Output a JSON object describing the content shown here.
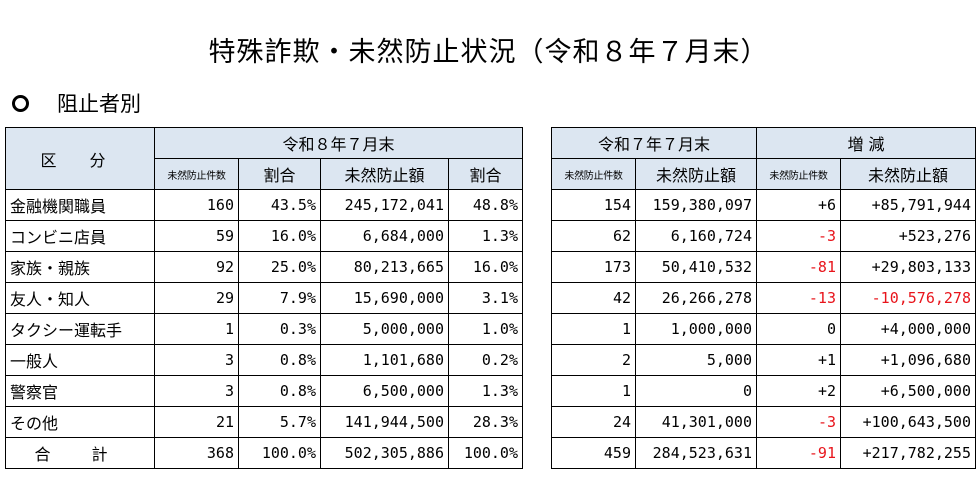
{
  "title": "特殊詐欺・未然防止状況（令和８年７月末）",
  "section_heading": "阻止者別",
  "left_table": {
    "category_header": "区 分",
    "period_header": "令和８年７月末",
    "columns": [
      "未然防止件数",
      "割合",
      "未然防止額",
      "割合"
    ],
    "rows": [
      {
        "category": "金融機関職員",
        "count": "160",
        "count_ratio": "43.5%",
        "amount": "245,172,041",
        "amount_ratio": "48.8%"
      },
      {
        "category": "コンビニ店員",
        "count": "59",
        "count_ratio": "16.0%",
        "amount": "6,684,000",
        "amount_ratio": "1.3%"
      },
      {
        "category": "家族・親族",
        "count": "92",
        "count_ratio": "25.0%",
        "amount": "80,213,665",
        "amount_ratio": "16.0%"
      },
      {
        "category": "友人・知人",
        "count": "29",
        "count_ratio": "7.9%",
        "amount": "15,690,000",
        "amount_ratio": "3.1%"
      },
      {
        "category": "タクシー運転手",
        "count": "1",
        "count_ratio": "0.3%",
        "amount": "5,000,000",
        "amount_ratio": "1.0%"
      },
      {
        "category": "一般人",
        "count": "3",
        "count_ratio": "0.8%",
        "amount": "1,101,680",
        "amount_ratio": "0.2%"
      },
      {
        "category": "警察官",
        "count": "3",
        "count_ratio": "0.8%",
        "amount": "6,500,000",
        "amount_ratio": "1.3%"
      },
      {
        "category": "その他",
        "count": "21",
        "count_ratio": "5.7%",
        "amount": "141,944,500",
        "amount_ratio": "28.3%"
      }
    ],
    "total": {
      "label": "合 計",
      "count": "368",
      "count_ratio": "100.0%",
      "amount": "502,305,886",
      "amount_ratio": "100.0%"
    }
  },
  "right_table": {
    "period_header": "令和７年７月末",
    "diff_header": "増 減",
    "columns": [
      "未然防止件数",
      "未然防止額",
      "未然防止件数",
      "未然防止額"
    ],
    "rows": [
      {
        "count": "154",
        "amount": "159,380,097",
        "count_diff": "+6",
        "amount_diff": "+85,791,944"
      },
      {
        "count": "62",
        "amount": "6,160,724",
        "count_diff": "-3",
        "amount_diff": "+523,276"
      },
      {
        "count": "173",
        "amount": "50,410,532",
        "count_diff": "-81",
        "amount_diff": "+29,803,133"
      },
      {
        "count": "42",
        "amount": "26,266,278",
        "count_diff": "-13",
        "amount_diff": "-10,576,278"
      },
      {
        "count": "1",
        "amount": "1,000,000",
        "count_diff": "0",
        "amount_diff": "+4,000,000"
      },
      {
        "count": "2",
        "amount": "5,000",
        "count_diff": "+1",
        "amount_diff": "+1,096,680"
      },
      {
        "count": "1",
        "amount": "0",
        "count_diff": "+2",
        "amount_diff": "+6,500,000"
      },
      {
        "count": "24",
        "amount": "41,301,000",
        "count_diff": "-3",
        "amount_diff": "+100,643,500"
      }
    ],
    "total": {
      "count": "459",
      "amount": "284,523,631",
      "count_diff": "-91",
      "amount_diff": "+217,782,255"
    }
  },
  "colors": {
    "header_bg": "#dce6f1",
    "negative": "#e8141b",
    "border": "#000000"
  }
}
